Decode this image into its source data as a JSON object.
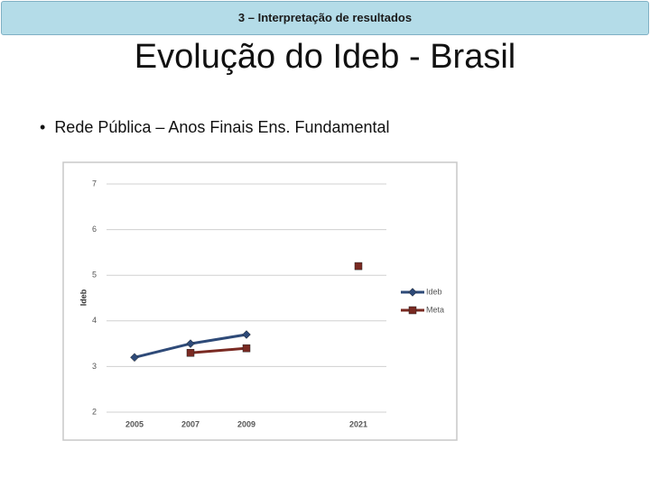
{
  "header": "3 – Interpretação de resultados",
  "title": "Evolução do Ideb - Brasil",
  "bullet": "Rede Pública – Anos Finais Ens. Fundamental",
  "chart_data": {
    "type": "line",
    "y_label": "Ideb",
    "categories": [
      "2005",
      "2007",
      "2009",
      null,
      "2021"
    ],
    "series": [
      {
        "name": "Ideb",
        "color": "#2e4a78",
        "marker": "diamond",
        "values": [
          3.2,
          3.5,
          3.7,
          null,
          null
        ]
      },
      {
        "name": "Meta",
        "color": "#7a2a22",
        "marker": "square",
        "values": [
          null,
          3.3,
          3.4,
          null,
          5.2
        ]
      }
    ],
    "ylim": [
      2,
      7
    ],
    "yticks": [
      2,
      3,
      4,
      5,
      6,
      7
    ],
    "grid": true,
    "legend": "right"
  }
}
